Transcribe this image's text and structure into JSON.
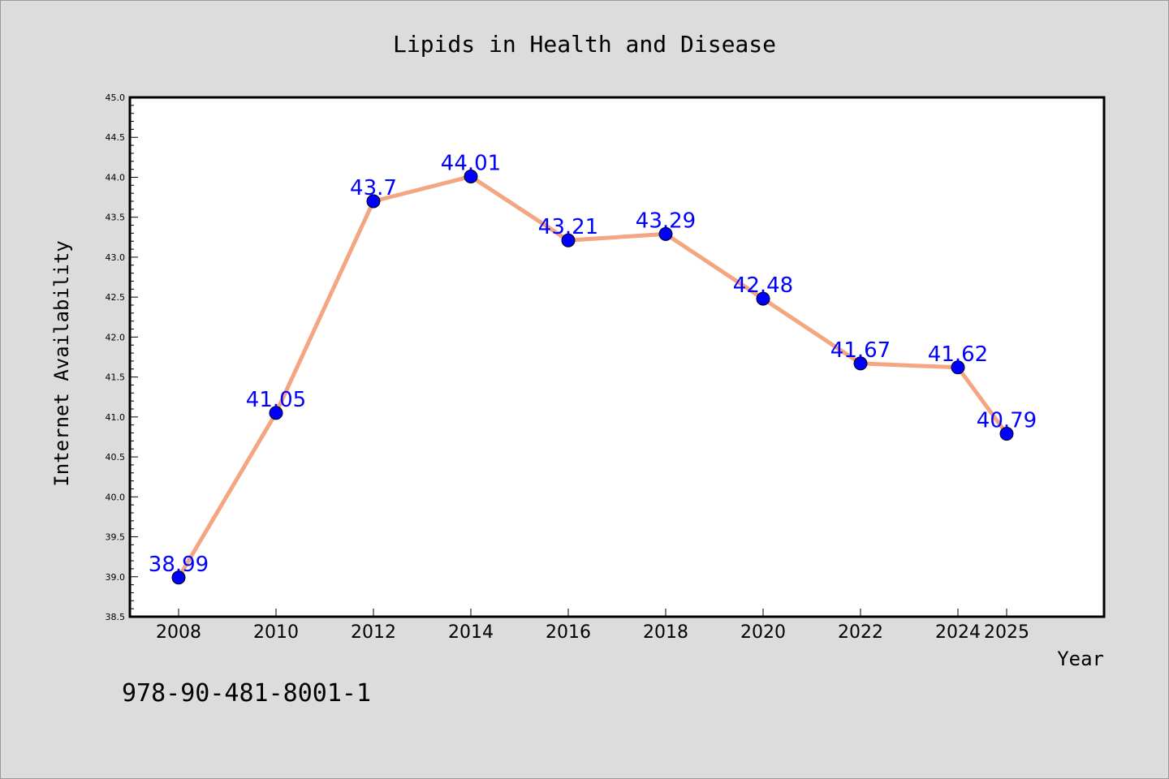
{
  "chart_data": {
    "type": "line",
    "title": "Lipids in Health and Disease",
    "xlabel": "Year",
    "ylabel": "Internet Availability",
    "x": [
      "2008",
      "2010",
      "2012",
      "2014",
      "2016",
      "2018",
      "2020",
      "2022",
      "2024",
      "2025"
    ],
    "series": [
      {
        "values": [
          38.99,
          41.05,
          43.7,
          44.01,
          43.21,
          43.29,
          42.48,
          41.67,
          41.62,
          40.79
        ],
        "data_labels": [
          "38.99",
          "41.05",
          "43.7",
          "44.01",
          "43.21",
          "43.29",
          "42.48",
          "41.67",
          "41.62",
          "40.79"
        ],
        "line_color": "#f4a582",
        "marker_color": "#0000ff",
        "label_color": "#0000ff"
      }
    ],
    "ylim": [
      38.5,
      45.0
    ],
    "yticks": [
      "38.5",
      "39.0",
      "39.5",
      "40.0",
      "40.5",
      "41.0",
      "41.5",
      "42.0",
      "42.5",
      "43.0",
      "43.5",
      "44.0",
      "44.5",
      "45.0"
    ],
    "grid": false,
    "legend": "none",
    "annotation": "978-90-481-8001-1",
    "background_color": "#dcdcdc",
    "plot_background": "#ffffff"
  }
}
